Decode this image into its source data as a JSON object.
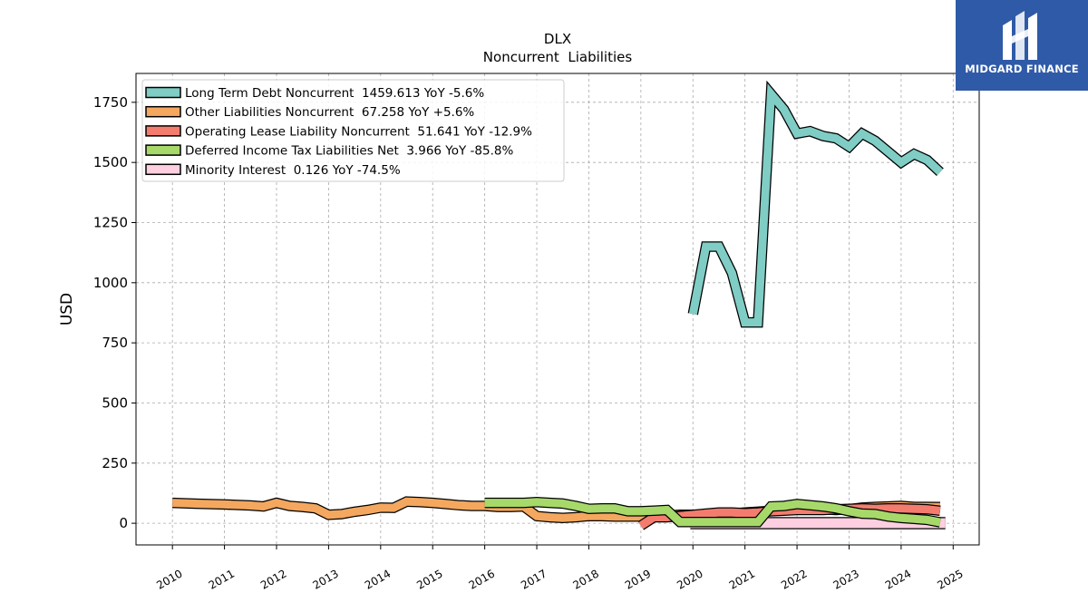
{
  "chart_data": {
    "type": "line",
    "title": "DLX",
    "subtitle": "Noncurrent  Liabilities",
    "ylabel": "USD",
    "xlabel": "",
    "xlim": [
      2009.3,
      2025.5
    ],
    "ylim": [
      -90,
      1870
    ],
    "yticks": [
      0,
      250,
      500,
      750,
      1000,
      1250,
      1500,
      1750
    ],
    "xticks": [
      "2010",
      "2011",
      "2012",
      "2013",
      "2014",
      "2015",
      "2016",
      "2017",
      "2018",
      "2019",
      "2020",
      "2021",
      "2022",
      "2023",
      "2024",
      "2025"
    ],
    "grid": true,
    "legend_position": "top-left",
    "series": [
      {
        "name": "Long Term Debt Noncurrent",
        "legend": "Long Term Debt Noncurrent  1459.613 YoY -5.6%",
        "color": "#7fcdc4",
        "x": [
          2020.0,
          2020.25,
          2020.5,
          2020.75,
          2021.0,
          2021.25,
          2021.5,
          2021.75,
          2022.0,
          2022.25,
          2022.5,
          2022.75,
          2023.0,
          2023.25,
          2023.5,
          2023.75,
          2024.0,
          2024.25,
          2024.5,
          2024.75
        ],
        "y": [
          870,
          1150,
          1150,
          1040,
          835,
          835,
          1785,
          1720,
          1620,
          1630,
          1610,
          1600,
          1565,
          1620,
          1590,
          1545,
          1500,
          1535,
          1510,
          1460
        ]
      },
      {
        "name": "Other Liabilities Noncurrent",
        "legend": "Other Liabilities Noncurrent  67.258 YoY +5.6%",
        "color": "#f4a75e",
        "x": [
          2010.0,
          2010.5,
          2011.0,
          2011.5,
          2011.75,
          2012.0,
          2012.25,
          2012.5,
          2012.75,
          2013.0,
          2013.25,
          2013.5,
          2013.75,
          2014.0,
          2014.25,
          2014.5,
          2014.75,
          2015.0,
          2015.25,
          2015.5,
          2015.75,
          2016.0,
          2016.25,
          2016.5,
          2016.75,
          2017.0,
          2017.25,
          2017.5,
          2017.75,
          2018.0,
          2018.25,
          2018.5,
          2018.75,
          2019.0,
          2019.25,
          2019.5,
          2019.75,
          2020.0,
          2020.25,
          2020.5,
          2020.75,
          2021.0,
          2021.25,
          2021.5,
          2021.75,
          2022.0,
          2022.25,
          2022.5,
          2022.75,
          2023.0,
          2023.25,
          2023.5,
          2023.75,
          2024.0,
          2024.25,
          2024.5,
          2024.75
        ],
        "y": [
          85,
          81,
          78,
          74,
          70,
          85,
          72,
          68,
          62,
          35,
          38,
          48,
          55,
          65,
          64,
          90,
          88,
          85,
          80,
          75,
          72,
          72,
          68,
          68,
          70,
          30,
          25,
          22,
          25,
          30,
          30,
          28,
          28,
          28,
          30,
          32,
          35,
          35,
          35,
          38,
          40,
          45,
          48,
          52,
          60,
          65,
          60,
          58,
          55,
          58,
          65,
          68,
          70,
          72,
          68,
          68,
          67
        ]
      },
      {
        "name": "Operating Lease Liability Noncurrent",
        "legend": "Operating Lease Liability Noncurrent  51.641 YoY -12.9%",
        "color": "#f47c6e",
        "x": [
          2019.0,
          2019.25,
          2019.5,
          2019.75,
          2020.0,
          2020.25,
          2020.5,
          2020.75,
          2021.0,
          2021.25,
          2021.5,
          2021.75,
          2022.0,
          2022.25,
          2022.5,
          2022.75,
          2023.0,
          2023.25,
          2023.5,
          2023.75,
          2024.0,
          2024.25,
          2024.5,
          2024.75
        ],
        "y": [
          -10,
          25,
          25,
          30,
          35,
          40,
          45,
          45,
          42,
          45,
          50,
          52,
          55,
          55,
          55,
          58,
          60,
          62,
          60,
          62,
          62,
          60,
          58,
          52
        ]
      },
      {
        "name": "Deferred Income Tax Liabilities Net",
        "legend": "Deferred Income Tax Liabilities Net  3.966 YoY -85.8%",
        "color": "#a6d96a",
        "x": [
          2016.0,
          2016.5,
          2016.75,
          2017.0,
          2017.25,
          2017.5,
          2017.75,
          2018.0,
          2018.25,
          2018.5,
          2018.75,
          2019.0,
          2019.25,
          2019.5,
          2019.75,
          2020.0,
          2020.25,
          2020.5,
          2020.75,
          2021.0,
          2021.25,
          2021.5,
          2021.75,
          2022.0,
          2022.25,
          2022.5,
          2022.75,
          2023.0,
          2023.25,
          2023.5,
          2023.75,
          2024.0,
          2024.25,
          2024.5,
          2024.75
        ],
        "y": [
          85,
          85,
          85,
          88,
          85,
          82,
          72,
          60,
          62,
          62,
          50,
          50,
          52,
          55,
          5,
          5,
          5,
          5,
          5,
          5,
          5,
          70,
          72,
          80,
          75,
          70,
          62,
          50,
          40,
          38,
          28,
          22,
          18,
          14,
          4
        ]
      },
      {
        "name": "Minority Interest",
        "legend": "Minority Interest  0.126 YoY -74.5%",
        "color": "#fdcfe0",
        "x": [
          2019.95,
          2024.85
        ],
        "y": [
          0.5,
          0.5
        ]
      }
    ]
  },
  "branding": {
    "logo_text": "MIDGARD FINANCE",
    "logo_color": "#2f5aa8"
  }
}
